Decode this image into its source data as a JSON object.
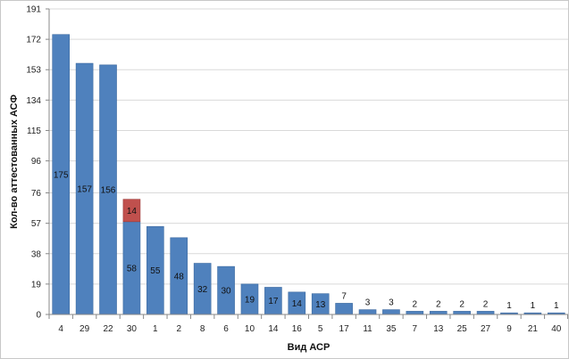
{
  "chart_data": {
    "type": "bar",
    "stacked": true,
    "xlabel": "Вид АСР",
    "ylabel": "Кол-во аттестованных АСФ",
    "ylim": [
      0,
      191
    ],
    "yticks": [
      0,
      19,
      38,
      57,
      76,
      96,
      115,
      134,
      153,
      172,
      191
    ],
    "grid": true,
    "legend": "none",
    "categories": [
      "4",
      "29",
      "22",
      "30",
      "1",
      "2",
      "8",
      "6",
      "10",
      "14",
      "16",
      "5",
      "17",
      "11",
      "35",
      "7",
      "13",
      "25",
      "27",
      "9",
      "21",
      "40"
    ],
    "series": [
      {
        "color": "#4f81bd",
        "values": [
          175,
          157,
          156,
          58,
          55,
          48,
          32,
          30,
          19,
          17,
          14,
          13,
          7,
          3,
          3,
          2,
          2,
          2,
          2,
          1,
          1,
          1
        ],
        "labels_inside": [
          true,
          true,
          true,
          true,
          true,
          true,
          true,
          true,
          true,
          true,
          true,
          true,
          false,
          false,
          false,
          false,
          false,
          false,
          false,
          false,
          false,
          false
        ]
      },
      {
        "color": "#c0504d",
        "values": [
          0,
          0,
          0,
          14,
          0,
          0,
          0,
          0,
          0,
          0,
          0,
          0,
          0,
          0,
          0,
          0,
          0,
          0,
          0,
          0,
          0,
          0
        ],
        "labels_inside": [
          false,
          false,
          false,
          true,
          false,
          false,
          false,
          false,
          false,
          false,
          false,
          false,
          false,
          false,
          false,
          false,
          false,
          false,
          false,
          false,
          false,
          false
        ]
      }
    ]
  }
}
